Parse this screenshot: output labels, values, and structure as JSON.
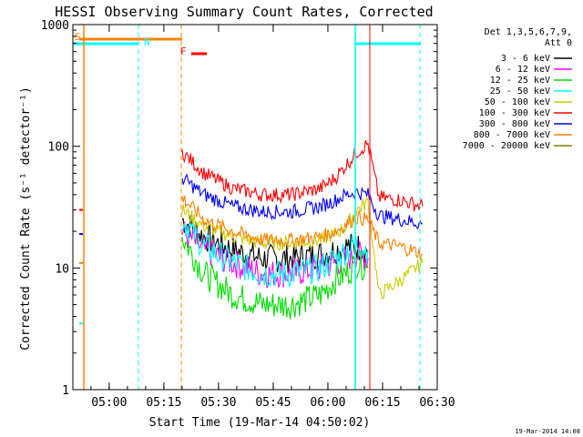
{
  "chart_data": {
    "type": "line",
    "title": "HESSI Observing Summary Count Rates, Corrected",
    "xlabel": "Start Time (19-Mar-14 04:50:02)",
    "ylabel": "Corrected Count Rate (s⁻¹ detector⁻¹)",
    "yscale": "log",
    "xlim": [
      "04:50:02",
      "06:30:00"
    ],
    "ylim": [
      1,
      1000
    ],
    "x_ticks": [
      "05:00",
      "05:15",
      "05:30",
      "05:45",
      "06:00",
      "06:15",
      "06:30"
    ],
    "y_ticks": [
      {
        "value": 1,
        "label": "1"
      },
      {
        "value": 10,
        "label": "10"
      },
      {
        "value": 100,
        "label": "100"
      },
      {
        "value": 1000,
        "label": "1000"
      }
    ],
    "legend_title": [
      "Det 1,3,5,6,7,9,",
      "Att 0"
    ],
    "legend_position": "right",
    "footer_date": "19-Mar-2014 14:08",
    "series": [
      {
        "name": "3 - 6 keV",
        "color": "#000000",
        "x": [
          "05:20",
          "05:26",
          "05:34",
          "05:42",
          "05:50",
          "05:58",
          "06:02",
          "06:05",
          "06:08",
          "06:11"
        ],
        "values": [
          25,
          18,
          14,
          12,
          12,
          13,
          14,
          15,
          15,
          14
        ]
      },
      {
        "name": "6 - 12 keV",
        "color": "#ff00ff",
        "x": [
          "05:20",
          "05:26",
          "05:34",
          "05:42",
          "05:50",
          "05:58",
          "06:02",
          "06:05",
          "06:08",
          "06:11"
        ],
        "values": [
          20,
          14,
          11,
          9,
          9,
          10,
          11,
          12,
          13,
          12
        ]
      },
      {
        "name": "12 - 25 keV",
        "color": "#00dd00",
        "x": [
          "05:20",
          "05:26",
          "05:34",
          "05:42",
          "05:50",
          "05:58",
          "06:02",
          "06:05",
          "06:08",
          "06:11"
        ],
        "values": [
          18,
          9,
          6,
          5,
          5,
          6,
          8,
          9,
          11,
          10
        ]
      },
      {
        "name": "25 - 50 keV",
        "color": "#00ffff",
        "x": [
          "05:20",
          "05:26",
          "05:34",
          "05:42",
          "05:50",
          "05:58",
          "06:02",
          "06:05",
          "06:08",
          "06:11"
        ],
        "values": [
          25,
          15,
          11,
          9,
          9,
          10,
          12,
          14,
          16,
          14
        ]
      },
      {
        "name": "50 - 100 keV",
        "color": "#cccc00",
        "x": [
          "05:20",
          "05:26",
          "05:34",
          "05:42",
          "05:50",
          "05:58",
          "06:02",
          "06:05",
          "06:08",
          "06:11",
          "06:14",
          "06:20",
          "06:26"
        ],
        "values": [
          30,
          22,
          18,
          16,
          16,
          17,
          19,
          22,
          30,
          35,
          6,
          8,
          11
        ]
      },
      {
        "name": "100 - 300 keV",
        "color": "#ff0000",
        "x": [
          "05:20",
          "05:26",
          "05:34",
          "05:42",
          "05:50",
          "05:58",
          "06:02",
          "06:05",
          "06:08",
          "06:11",
          "06:14",
          "06:20",
          "06:26"
        ],
        "values": [
          90,
          60,
          45,
          40,
          40,
          45,
          55,
          70,
          90,
          105,
          38,
          36,
          32
        ]
      },
      {
        "name": "300 - 800 keV",
        "color": "#0000ff",
        "x": [
          "05:20",
          "05:26",
          "05:34",
          "05:42",
          "05:50",
          "05:58",
          "06:02",
          "06:05",
          "06:08",
          "06:11",
          "06:14",
          "06:20",
          "06:26"
        ],
        "values": [
          55,
          40,
          32,
          29,
          29,
          32,
          36,
          40,
          42,
          40,
          27,
          25,
          23
        ]
      },
      {
        "name": "800 - 7000 keV",
        "color": "#ff8000",
        "x": [
          "05:20",
          "05:26",
          "05:34",
          "05:42",
          "05:50",
          "05:58",
          "06:02",
          "06:05",
          "06:08",
          "06:11",
          "06:14",
          "06:20",
          "06:26"
        ],
        "values": [
          38,
          25,
          20,
          17,
          17,
          18,
          20,
          23,
          26,
          25,
          16,
          15,
          13
        ]
      },
      {
        "name": "7000 - 20000 keV",
        "color": "#808000",
        "x": [],
        "values": []
      }
    ],
    "annotations": [
      {
        "label": "S",
        "color": "#ff8000"
      },
      {
        "label": "N",
        "color": "#00ffff"
      },
      {
        "label": "F",
        "color": "#ff0000"
      }
    ]
  }
}
